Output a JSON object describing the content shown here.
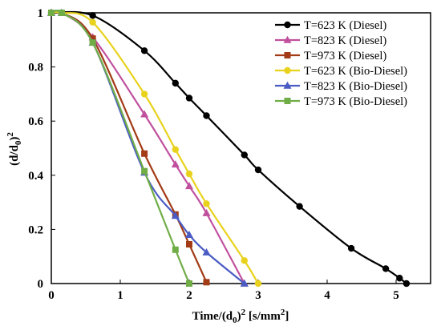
{
  "chart_data": {
    "type": "line",
    "xlabel": "Time/(d0)2 [s/mm2]",
    "xlabel_parts": {
      "a": "Time/(d",
      "sub": "0",
      "b": ")",
      "sup": "2",
      "c": " [s/mm",
      "sup2": "2",
      "d": "]"
    },
    "ylabel": "(d/d0)2",
    "ylabel_parts": {
      "a": "(d/d",
      "sub": "0",
      "b": ")",
      "sup": "2"
    },
    "xlim": [
      0,
      5.5
    ],
    "ylim": [
      0,
      1
    ],
    "x_ticks": [
      0,
      1,
      2,
      3,
      4,
      5
    ],
    "x_tick_labels": [
      "0",
      "1",
      "2",
      "3",
      "4",
      "5"
    ],
    "y_ticks": [
      0,
      0.2,
      0.4,
      0.6,
      0.8,
      1
    ],
    "y_tick_labels": [
      "0",
      "0.2",
      "0.4",
      "0.6",
      "0.8",
      "1"
    ],
    "grid": false,
    "legend_position": "top-right",
    "series": [
      {
        "name": "T=623 K (Diesel)",
        "color": "#000000",
        "marker": "circle",
        "x": [
          0.0,
          0.6,
          1.35,
          1.8,
          2.0,
          2.25,
          2.8,
          3.0,
          3.6,
          4.35,
          4.85,
          5.05,
          5.15
        ],
        "y": [
          1.0,
          0.99,
          0.86,
          0.74,
          0.685,
          0.62,
          0.475,
          0.42,
          0.285,
          0.13,
          0.055,
          0.02,
          0.0
        ]
      },
      {
        "name": "T=823 K (Diesel)",
        "color": "#C0509E",
        "marker": "triangle",
        "x": [
          0.0,
          0.15,
          0.6,
          1.35,
          1.8,
          2.0,
          2.25,
          2.8
        ],
        "y": [
          1.0,
          1.0,
          0.91,
          0.625,
          0.44,
          0.36,
          0.26,
          0.0
        ]
      },
      {
        "name": "T=973 K (Diesel)",
        "color": "#A33B16",
        "marker": "square",
        "x": [
          0.0,
          0.15,
          0.6,
          1.35,
          1.8,
          2.0,
          2.25
        ],
        "y": [
          1.0,
          1.0,
          0.905,
          0.48,
          0.255,
          0.145,
          0.005
        ]
      },
      {
        "name": "T=623 K (Bio-Diesel)",
        "color": "#E8D21D",
        "marker": "circle",
        "x": [
          0.0,
          0.15,
          0.6,
          1.35,
          1.8,
          2.0,
          2.25,
          2.8,
          3.0
        ],
        "y": [
          1.0,
          1.0,
          0.965,
          0.7,
          0.495,
          0.405,
          0.295,
          0.085,
          0.0
        ]
      },
      {
        "name": "T=823 K (Bio-Diesel)",
        "color": "#4A5CC4",
        "marker": "triangle",
        "x": [
          0.0,
          0.15,
          0.6,
          1.35,
          1.8,
          2.0,
          2.25,
          2.8
        ],
        "y": [
          1.0,
          1.0,
          0.89,
          0.41,
          0.25,
          0.18,
          0.115,
          0.0
        ]
      },
      {
        "name": "T=973 K (Bio-Diesel)",
        "color": "#70AD47",
        "marker": "square",
        "x": [
          0.0,
          0.15,
          0.6,
          1.35,
          1.8,
          2.0
        ],
        "y": [
          1.0,
          1.0,
          0.89,
          0.415,
          0.125,
          0.0
        ]
      }
    ]
  }
}
